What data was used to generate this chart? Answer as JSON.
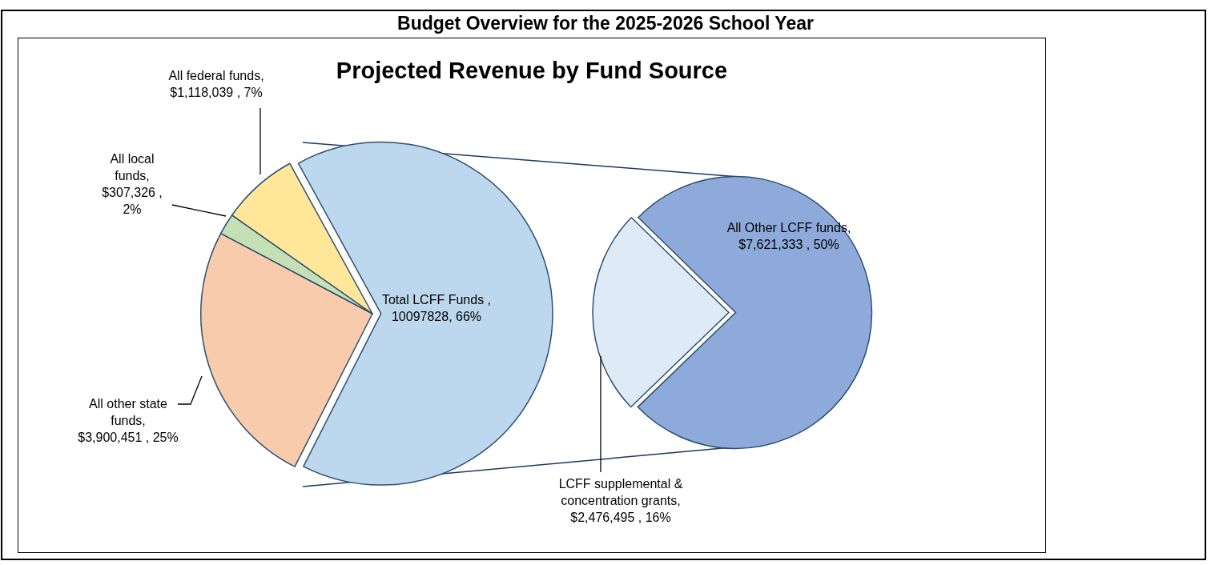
{
  "chart_data": [
    {
      "type": "pie",
      "title": "Budget Overview for the 2025-2026 School Year",
      "subtitle": "Projected Revenue by Fund Source",
      "categories": [
        "Total LCFF Funds",
        "All other state funds",
        "All local funds",
        "All federal funds"
      ],
      "values": [
        10097828,
        3900451,
        307326,
        1118039
      ],
      "colors": [
        "#bdd7ee",
        "#f8cbad",
        "#c5e0b4",
        "#ffe699"
      ],
      "value_labels": [
        " ,\n10097828, 66%",
        ",\n$3,900,451 , 25%",
        ",\n$307,326 , 2%",
        ",\n$1,118,039 , 7%"
      ],
      "legend": false
    },
    {
      "type": "pie",
      "categories": [
        "LCFF supplemental & concentration grants",
        "All Other LCFF funds"
      ],
      "values": [
        2476495,
        7621333
      ],
      "colors": [
        "#deebf7",
        "#8eaadb"
      ],
      "value_labels": [
        ",\n$2,476,495 , 16%",
        ",\n$7,621,333 , 50%"
      ],
      "legend": false
    }
  ]
}
